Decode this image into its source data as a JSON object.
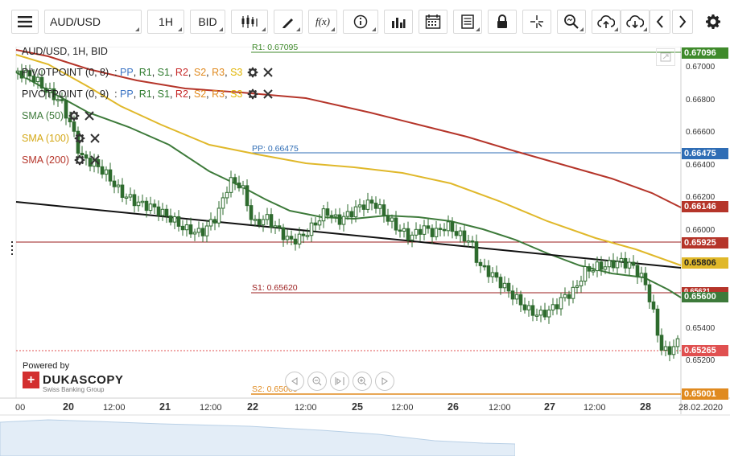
{
  "toolbar": {
    "symbol": "AUD/USD",
    "timeframe": "1H",
    "side": "BID",
    "fx_label": "f(x)"
  },
  "legend": {
    "title": "AUD/USD, 1H, BID",
    "pivot1": "PIVOTPOINT (0, 8)",
    "pivot2": "PIVOTPOINT (0, 9)",
    "pp": "PP",
    "r1": "R1",
    "s1": "S1",
    "r2": "R2",
    "s2": "S2",
    "r3": "R3",
    "s3": "S3",
    "sep": ":",
    "comma": ",",
    "sma50": "SMA (50)",
    "sma100": "SMA (100)",
    "sma200": "SMA (200)"
  },
  "levels": {
    "r1": "R1: 0.67095",
    "pp": "PP: 0.66475",
    "s1": "S1: 0.65620",
    "s2": "S2: 0.65000"
  },
  "price_tags": [
    {
      "label": "0.67096",
      "color": "#3f8a2b"
    },
    {
      "label": "0.66475",
      "color": "#2f6db5"
    },
    {
      "label": "0.66146",
      "color": "#b5352a"
    },
    {
      "label": "0.65925",
      "color": "#b5352a"
    },
    {
      "label": "0.65806",
      "color": "#e0b82a",
      "text": "#222"
    },
    {
      "label": "0.65600",
      "color": "#3d7a3a"
    },
    {
      "label": "0.65265",
      "color": "#e05050"
    },
    {
      "label": "0.65001",
      "color": "#e08a1f"
    }
  ],
  "hidden_tag": "0.65621",
  "price_axis": [
    "0.67000",
    "0.66800",
    "0.66600",
    "0.66400",
    "0.66200",
    "0.66000",
    "0.65800",
    "0.65600",
    "0.65400",
    "0.65200"
  ],
  "time_axis": [
    {
      "label": "00",
      "bold": false
    },
    {
      "label": "20",
      "bold": true
    },
    {
      "label": "12:00",
      "bold": false
    },
    {
      "label": "21",
      "bold": true
    },
    {
      "label": "12:00",
      "bold": false
    },
    {
      "label": "22",
      "bold": true
    },
    {
      "label": "12:00",
      "bold": false
    },
    {
      "label": "25",
      "bold": true
    },
    {
      "label": "12:00",
      "bold": false
    },
    {
      "label": "26",
      "bold": true
    },
    {
      "label": "12:00",
      "bold": false
    },
    {
      "label": "27",
      "bold": true
    },
    {
      "label": "12:00",
      "bold": false
    },
    {
      "label": "28",
      "bold": true
    },
    {
      "label": "28.02.2020",
      "bold": false
    }
  ],
  "branding": {
    "powered": "Powered by",
    "name": "DUKASCOPY",
    "sub": "Swiss Banking Group"
  },
  "colors": {
    "sma50": "#3d7a3a",
    "sma100": "#e0b82a",
    "sma200": "#b5352a",
    "trendline": "#111111",
    "candle": "#2e6b2e"
  }
}
